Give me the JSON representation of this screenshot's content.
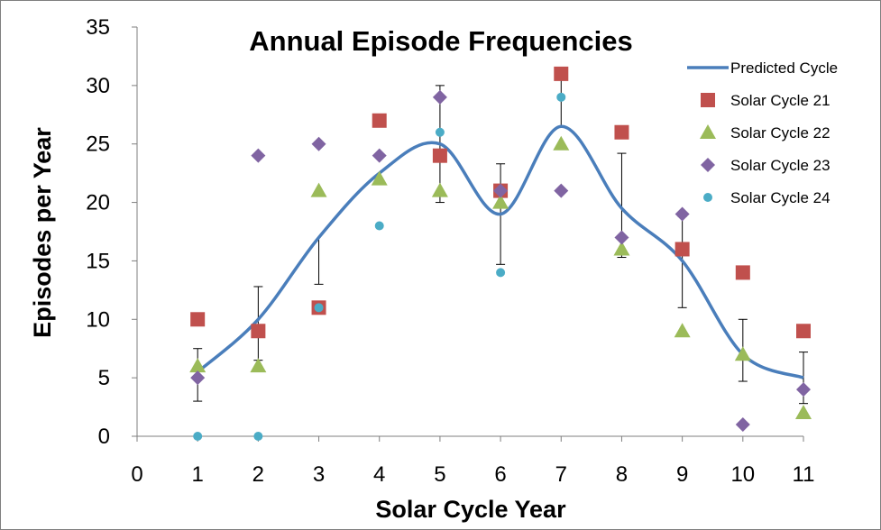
{
  "chart_data": {
    "type": "scatter",
    "title": "Annual Episode Frequencies",
    "xlabel": "Solar Cycle Year",
    "ylabel": "Episodes per Year",
    "xlim": [
      0,
      11
    ],
    "ylim": [
      0,
      35
    ],
    "xticks": [
      0,
      1,
      2,
      3,
      4,
      5,
      6,
      7,
      8,
      9,
      10,
      11
    ],
    "yticks": [
      0,
      5,
      10,
      15,
      20,
      25,
      30,
      35
    ],
    "grid": false,
    "legend_position": "top-right",
    "line": {
      "name": "Predicted Cycle",
      "color": "#4a7ebb",
      "x": [
        1,
        2,
        3,
        4,
        5,
        6,
        7,
        8,
        9,
        10,
        11
      ],
      "y": [
        5.5,
        10,
        17,
        22.5,
        25,
        19,
        26.5,
        19.5,
        15,
        7,
        5
      ],
      "err_low": [
        3,
        6.5,
        13,
        null,
        20,
        14.7,
        null,
        15.3,
        11,
        4.7,
        2.8
      ],
      "err_high": [
        7.5,
        12.8,
        null,
        null,
        30,
        23.3,
        31.5,
        24.2,
        18.8,
        10,
        7.2
      ]
    },
    "series": [
      {
        "name": "Solar Cycle 21",
        "marker": "square",
        "color": "#c0504d",
        "x": [
          1,
          2,
          3,
          4,
          5,
          6,
          7,
          8,
          9,
          10,
          11
        ],
        "values": [
          10,
          9,
          11,
          27,
          24,
          21,
          31,
          26,
          16,
          14,
          9
        ]
      },
      {
        "name": "Solar Cycle 22",
        "marker": "triangle",
        "color": "#9bbb59",
        "x": [
          1,
          2,
          3,
          4,
          5,
          6,
          7,
          8,
          9,
          10,
          11
        ],
        "values": [
          6,
          6,
          21,
          22,
          21,
          20,
          25,
          16,
          9,
          7,
          2
        ]
      },
      {
        "name": "Solar Cycle 23",
        "marker": "diamond",
        "color": "#8064a2",
        "x": [
          1,
          2,
          3,
          4,
          5,
          6,
          7,
          8,
          9,
          10,
          11
        ],
        "values": [
          5,
          24,
          25,
          24,
          29,
          21,
          21,
          17,
          19,
          1,
          4
        ]
      },
      {
        "name": "Solar Cycle 24",
        "marker": "circle",
        "color": "#4bacc6",
        "x": [
          1,
          2,
          3,
          4,
          5,
          6,
          7
        ],
        "values": [
          0,
          0,
          11,
          18,
          26,
          14,
          29
        ]
      }
    ]
  }
}
